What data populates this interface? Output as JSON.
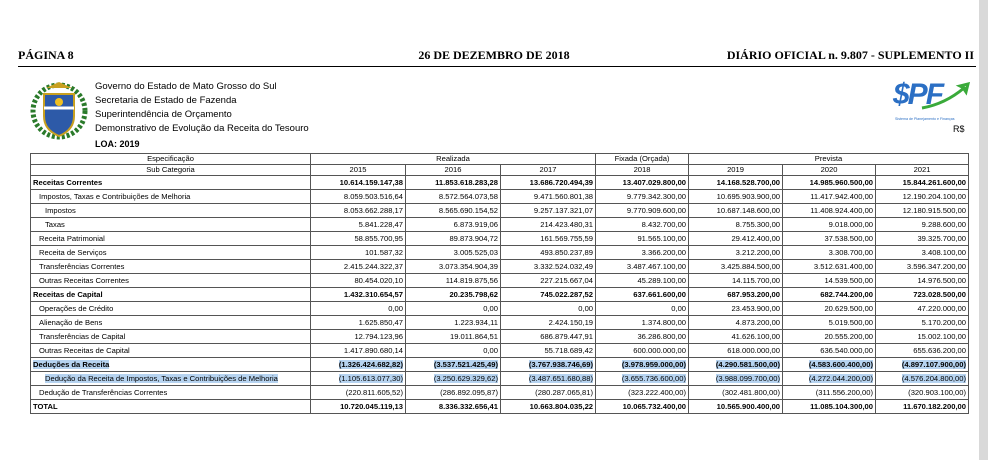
{
  "header": {
    "page": "PÁGINA 8",
    "date": "26 DE DEZEMBRO DE 2018",
    "journal": "DIÁRIO OFICIAL n. 9.807 - SUPLEMENTO II"
  },
  "letterhead": {
    "lines": [
      "Governo do Estado de Mato Grosso do Sul",
      "Secretaria de Estado de Fazenda",
      "Superintendência de Orçamento",
      "Demonstrativo de Evolução da Receita do Tesouro"
    ],
    "loa": "LOA: 2019",
    "currency": "R$",
    "logo": {
      "mark": "$PF",
      "caption": "Sistema de Planejamento e Finanças"
    }
  },
  "table": {
    "head": {
      "spec": "Especificação",
      "sub": "Sub Categoria",
      "groups": [
        {
          "label": "Realizada",
          "span": 3
        },
        {
          "label": "Fixada (Orçada)",
          "span": 1
        },
        {
          "label": "Prevista",
          "span": 3
        }
      ],
      "years": [
        "2015",
        "2016",
        "2017",
        "2018",
        "2019",
        "2020",
        "2021"
      ]
    },
    "rows": [
      {
        "label": "Receitas Correntes",
        "level": 0,
        "bold": true,
        "values": [
          "10.614.159.147,38",
          "11.853.618.283,28",
          "13.686.720.494,39",
          "13.407.029.800,00",
          "14.168.528.700,00",
          "14.985.960.500,00",
          "15.844.261.600,00"
        ]
      },
      {
        "label": "Impostos, Taxas e Contribuições de Melhoria",
        "level": 1,
        "values": [
          "8.059.503.516,64",
          "8.572.564.073,58",
          "9.471.560.801,38",
          "9.779.342.300,00",
          "10.695.903.900,00",
          "11.417.942.400,00",
          "12.190.204.100,00"
        ]
      },
      {
        "label": "Impostos",
        "level": 2,
        "values": [
          "8.053.662.288,17",
          "8.565.690.154,52",
          "9.257.137.321,07",
          "9.770.909.600,00",
          "10.687.148.600,00",
          "11.408.924.400,00",
          "12.180.915.500,00"
        ]
      },
      {
        "label": "Taxas",
        "level": 2,
        "values": [
          "5.841.228,47",
          "6.873.919,06",
          "214.423.480,31",
          "8.432.700,00",
          "8.755.300,00",
          "9.018.000,00",
          "9.288.600,00"
        ]
      },
      {
        "label": "Receita Patrimonial",
        "level": 1,
        "values": [
          "58.855.700,95",
          "89.873.904,72",
          "161.569.755,59",
          "91.565.100,00",
          "29.412.400,00",
          "37.538.500,00",
          "39.325.700,00"
        ]
      },
      {
        "label": "Receita de Serviços",
        "level": 1,
        "values": [
          "101.587,32",
          "3.005.525,03",
          "493.850.237,89",
          "3.366.200,00",
          "3.212.200,00",
          "3.308.700,00",
          "3.408.100,00"
        ]
      },
      {
        "label": "Transferências Correntes",
        "level": 1,
        "values": [
          "2.415.244.322,37",
          "3.073.354.904,39",
          "3.332.524.032,49",
          "3.487.467.100,00",
          "3.425.884.500,00",
          "3.512.631.400,00",
          "3.596.347.200,00"
        ]
      },
      {
        "label": "Outras Receitas Correntes",
        "level": 1,
        "values": [
          "80.454.020,10",
          "114.819.875,56",
          "227.215.667,04",
          "45.289.100,00",
          "14.115.700,00",
          "14.539.500,00",
          "14.976.500,00"
        ]
      },
      {
        "label": "Receitas de Capital",
        "level": 0,
        "bold": true,
        "values": [
          "1.432.310.654,57",
          "20.235.798,62",
          "745.022.287,52",
          "637.661.600,00",
          "687.953.200,00",
          "682.744.200,00",
          "723.028.500,00"
        ]
      },
      {
        "label": "Operações de Crédito",
        "level": 1,
        "values": [
          "0,00",
          "0,00",
          "0,00",
          "0,00",
          "23.453.900,00",
          "20.629.500,00",
          "47.220.000,00"
        ]
      },
      {
        "label": "Alienação de Bens",
        "level": 1,
        "values": [
          "1.625.850,47",
          "1.223.934,11",
          "2.424.150,19",
          "1.374.800,00",
          "4.873.200,00",
          "5.019.500,00",
          "5.170.200,00"
        ]
      },
      {
        "label": "Transferências de Capital",
        "level": 1,
        "values": [
          "12.794.123,96",
          "19.011.864,51",
          "686.879.447,91",
          "36.286.800,00",
          "41.626.100,00",
          "20.555.200,00",
          "15.002.100,00"
        ]
      },
      {
        "label": "Outras Receitas de Capital",
        "level": 1,
        "values": [
          "1.417.890.680,14",
          "0,00",
          "55.718.689,42",
          "600.000.000,00",
          "618.000.000,00",
          "636.540.000,00",
          "655.636.200,00"
        ]
      },
      {
        "label": "Deduções da Receita",
        "level": 0,
        "bold": true,
        "highlighted": true,
        "values": [
          "(1.326.424.682,82)",
          "(3.537.521.425,49)",
          "(3.767.938.746,69)",
          "(3.978.959.000,00)",
          "(4.290.581.500,00)",
          "(4.583.600.400,00)",
          "(4.897.107.900,00)"
        ]
      },
      {
        "label": "Dedução da Receita de Impostos, Taxas e Contribuições de Melhoria",
        "level": 2,
        "highlighted": true,
        "values": [
          "(1.105.613.077,30)",
          "(3.250.629.329,62)",
          "(3.487.651.680,88)",
          "(3.655.736.600,00)",
          "(3.988.099.700,00)",
          "(4.272.044.200,00)",
          "(4.576.204.800,00)"
        ]
      },
      {
        "label": "Dedução de Transferências Correntes",
        "level": 1,
        "values": [
          "(220.811.605,52)",
          "(286.892.095,87)",
          "(280.287.065,81)",
          "(323.222.400,00)",
          "(302.481.800,00)",
          "(311.556.200,00)",
          "(320.903.100,00)"
        ]
      },
      {
        "label": "TOTAL",
        "level": 0,
        "bold": true,
        "values": [
          "10.720.045.119,13",
          "8.336.332.656,41",
          "10.663.804.035,22",
          "10.065.732.400,00",
          "10.565.900.400,00",
          "11.085.104.300,00",
          "11.670.182.200,00"
        ]
      }
    ]
  }
}
